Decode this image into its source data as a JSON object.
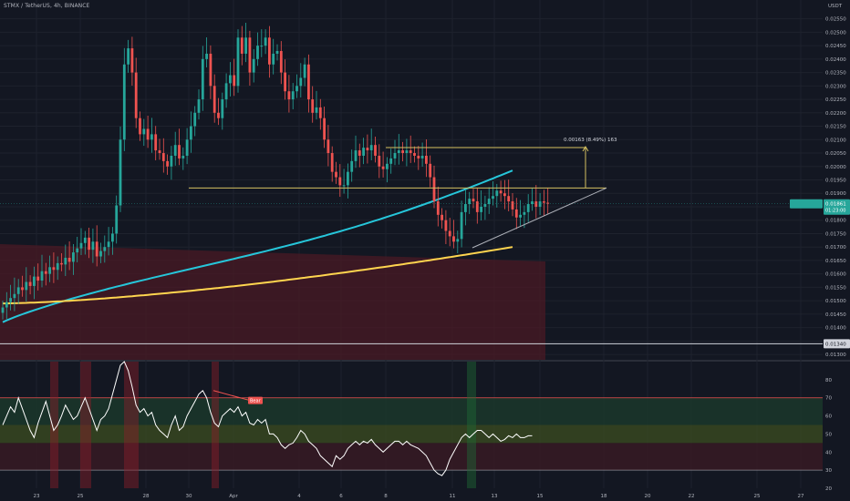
{
  "header": {
    "symbol_title": "STMX / TetherUS, 4h, BINANCE"
  },
  "colors": {
    "background": "#131722",
    "grid": "#1e222d",
    "up": "#26a69a",
    "down": "#ef5350",
    "ma_fast": "#26c6da",
    "ma_slow": "#ffd54f",
    "annotation": "#d4c060",
    "triangle": "#b0b3bb",
    "rsi": "#ffffff"
  },
  "chart_data": [
    {
      "type": "candlestick",
      "title": "",
      "y_axis_unit_label": "USDT",
      "ylim": [
        0.0128,
        0.0262
      ],
      "x_tick_labels": [
        "23",
        "25",
        "28",
        "30",
        "Apr",
        "4",
        "6",
        "8",
        "11",
        "13",
        "15",
        "18",
        "20",
        "22",
        "25",
        "27"
      ],
      "y_tick_labels": [
        "0.02600",
        "0.02550",
        "0.02500",
        "0.02450",
        "0.02400",
        "0.02350",
        "0.02300",
        "0.02250",
        "0.02200",
        "0.02150",
        "0.02100",
        "0.02050",
        "0.02000",
        "0.01950",
        "0.01900",
        "0.01850",
        "0.01800",
        "0.01750",
        "0.01700",
        "0.01650",
        "0.01600",
        "0.01550",
        "0.01500",
        "0.01450",
        "0.01400",
        "0.01350",
        "0.01300"
      ],
      "series": [
        {
          "name": "",
          "type": "candlestick",
          "close": [
            0.01475,
            0.01495,
            0.0151,
            0.01525,
            0.0155,
            0.0154,
            0.0157,
            0.01555,
            0.0159,
            0.01575,
            0.0161,
            0.016,
            0.01625,
            0.01615,
            0.0164,
            0.01635,
            0.0166,
            0.01645,
            0.0168,
            0.01695,
            0.01715,
            0.01735,
            0.0169,
            0.0172,
            0.01665,
            0.01685,
            0.017,
            0.0172,
            0.0175,
            0.01855,
            0.021,
            0.0238,
            0.0244,
            0.0235,
            0.0218,
            0.0212,
            0.0214,
            0.021,
            0.0212,
            0.0206,
            0.0205,
            0.0202,
            0.02,
            0.0204,
            0.0208,
            0.0203,
            0.0204,
            0.021,
            0.0215,
            0.022,
            0.0225,
            0.024,
            0.0242,
            0.023,
            0.022,
            0.0218,
            0.0225,
            0.0231,
            0.0234,
            0.023,
            0.0248,
            0.0242,
            0.0248,
            0.0235,
            0.024,
            0.0245,
            0.0245,
            0.0248,
            0.0238,
            0.0242,
            0.0243,
            0.0235,
            0.0228,
            0.0225,
            0.0228,
            0.023,
            0.0233,
            0.0238,
            0.0225,
            0.022,
            0.0222,
            0.0218,
            0.021,
            0.0205,
            0.0198,
            0.0196,
            0.0193,
            0.0193,
            0.0198,
            0.0202,
            0.0206,
            0.0204,
            0.0207,
            0.0206,
            0.0208,
            0.0204,
            0.02,
            0.0199,
            0.0201,
            0.0203,
            0.0205,
            0.0206,
            0.0205,
            0.0206,
            0.0205,
            0.0204,
            0.0203,
            0.0204,
            0.0201,
            0.0196,
            0.0187,
            0.0182,
            0.018,
            0.0176,
            0.0174,
            0.0172,
            0.0173,
            0.0183,
            0.0186,
            0.0188,
            0.0187,
            0.0183,
            0.0185,
            0.0186,
            0.0188,
            0.0189,
            0.0191,
            0.019,
            0.0189,
            0.0187,
            0.0184,
            0.0181,
            0.0182,
            0.0183,
            0.0186,
            0.0187,
            0.0185,
            0.0187,
            0.01865,
            0.01861
          ]
        },
        {
          "name": "",
          "type": "line",
          "role": "fast_moving_average",
          "x_range": [
            0,
            130
          ],
          "y_range": [
            0.0142,
            0.01985
          ]
        },
        {
          "name": "",
          "type": "line",
          "role": "slow_moving_average",
          "x_range": [
            0,
            130
          ],
          "y_range": [
            0.0149,
            0.017
          ]
        }
      ],
      "price_labels": {
        "last": "0.01861",
        "countdown": "01:23:00",
        "level": "0.01340"
      },
      "annotations": {
        "range_measure": "0.00163 (8.49%) 163",
        "horizontal_level": 0.0134,
        "support_line": 0.0192
      }
    },
    {
      "type": "line",
      "title": "",
      "ylim": [
        20,
        90
      ],
      "y_tick_labels": [
        "80",
        "70",
        "60",
        "50",
        "40",
        "30",
        "20"
      ],
      "bands": {
        "upper": 70,
        "lower": 30,
        "mid_high": 55,
        "mid_low": 45
      },
      "series": [
        {
          "name": "",
          "values": [
            55,
            60,
            65,
            62,
            70,
            64,
            58,
            52,
            48,
            56,
            62,
            68,
            60,
            52,
            55,
            60,
            66,
            62,
            58,
            60,
            65,
            70,
            64,
            58,
            52,
            58,
            60,
            64,
            72,
            80,
            88,
            90,
            85,
            76,
            66,
            62,
            64,
            60,
            62,
            55,
            52,
            50,
            48,
            55,
            60,
            52,
            54,
            60,
            64,
            68,
            72,
            74,
            70,
            62,
            56,
            54,
            60,
            62,
            64,
            62,
            65,
            60,
            62,
            56,
            55,
            58,
            56,
            58,
            50,
            50,
            48,
            44,
            42,
            44,
            45,
            48,
            52,
            50,
            46,
            44,
            42,
            38,
            36,
            34,
            32,
            38,
            36,
            38,
            42,
            44,
            46,
            44,
            46,
            45,
            47,
            44,
            42,
            40,
            42,
            44,
            46,
            46,
            44,
            46,
            44,
            43,
            42,
            40,
            38,
            34,
            30,
            28,
            27,
            30,
            36,
            40,
            44,
            48,
            50,
            48,
            50,
            52,
            52,
            50,
            48,
            50,
            48,
            46,
            47,
            49,
            48,
            50,
            48,
            48,
            49,
            49
          ]
        }
      ],
      "annotations": {
        "badge": "Bear"
      }
    }
  ]
}
